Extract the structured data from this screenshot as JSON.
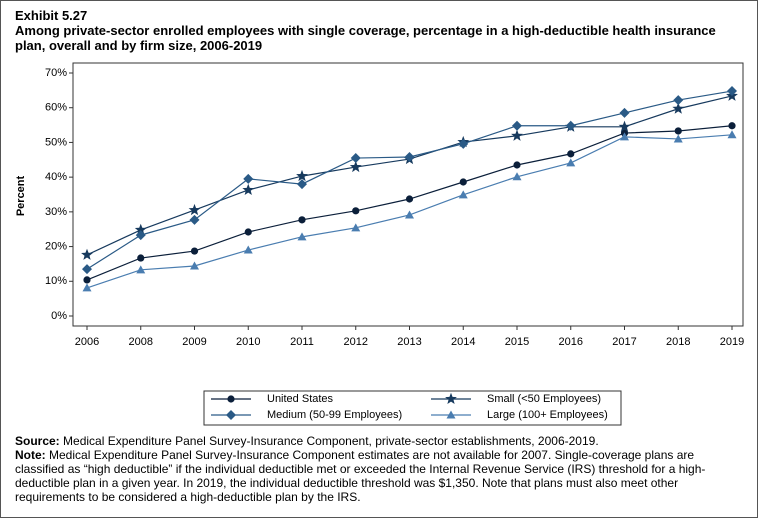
{
  "exhibit": "Exhibit 5.27",
  "chart_data": {
    "type": "line",
    "title": "Among private-sector enrolled employees with single coverage, percentage in a high-deductible health insurance plan, overall and by firm size, 2006-2019",
    "y_label": "Percent",
    "categories": [
      "2006",
      "2008",
      "2009",
      "2010",
      "2011",
      "2012",
      "2013",
      "2014",
      "2015",
      "2016",
      "2017",
      "2018",
      "2019"
    ],
    "series": [
      {
        "name": "United States",
        "color": "#0b1f3a",
        "marker": "circle",
        "values": [
          10.4,
          16.7,
          18.7,
          24.2,
          27.7,
          30.3,
          33.7,
          38.6,
          43.5,
          46.7,
          52.7,
          53.3,
          54.8
        ]
      },
      {
        "name": "Small (<50 Employees)",
        "color": "#173a5e",
        "marker": "star",
        "values": [
          17.6,
          24.8,
          30.5,
          36.3,
          40.3,
          42.9,
          45.2,
          50.1,
          51.9,
          54.5,
          54.5,
          59.7,
          63.4
        ]
      },
      {
        "name": "Medium (50-99 Employees)",
        "color": "#2a5a86",
        "marker": "diamond",
        "values": [
          13.5,
          23.3,
          27.7,
          39.5,
          38.0,
          45.5,
          45.8,
          49.6,
          54.8,
          54.8,
          58.5,
          62.2,
          64.8
        ]
      },
      {
        "name": "Large (100+ Employees)",
        "color": "#4a7db0",
        "marker": "triangle",
        "values": [
          8.1,
          13.3,
          14.4,
          19.0,
          22.8,
          25.4,
          29.1,
          34.9,
          40.1,
          44.1,
          51.6,
          51.0,
          52.2
        ]
      }
    ],
    "ylim": [
      0,
      70
    ],
    "yticks": [
      {
        "value": 0,
        "label": "0%"
      },
      {
        "value": 10,
        "label": "10%"
      },
      {
        "value": 20,
        "label": "20%"
      },
      {
        "value": 30,
        "label": "30%"
      },
      {
        "value": 40,
        "label": "40%"
      },
      {
        "value": 50,
        "label": "50%"
      },
      {
        "value": 60,
        "label": "60%"
      },
      {
        "value": 70,
        "label": "70%"
      }
    ]
  },
  "source": {
    "label": "Source:",
    "text": "Medical Expenditure Panel Survey-Insurance Component, private-sector establishments, 2006-2019."
  },
  "note": {
    "label": "Note:",
    "text": "Medical Expenditure Panel Survey-Insurance Component estimates are not available for 2007. Single-coverage plans are classified as “high deductible” if the individual deductible met or exceeded the Internal Revenue Service (IRS) threshold for a high-deductible plan in a given year. In 2019, the individual deductible threshold was $1,350. Note that plans must also meet other requirements to be considered a high-deductible plan by the IRS."
  }
}
